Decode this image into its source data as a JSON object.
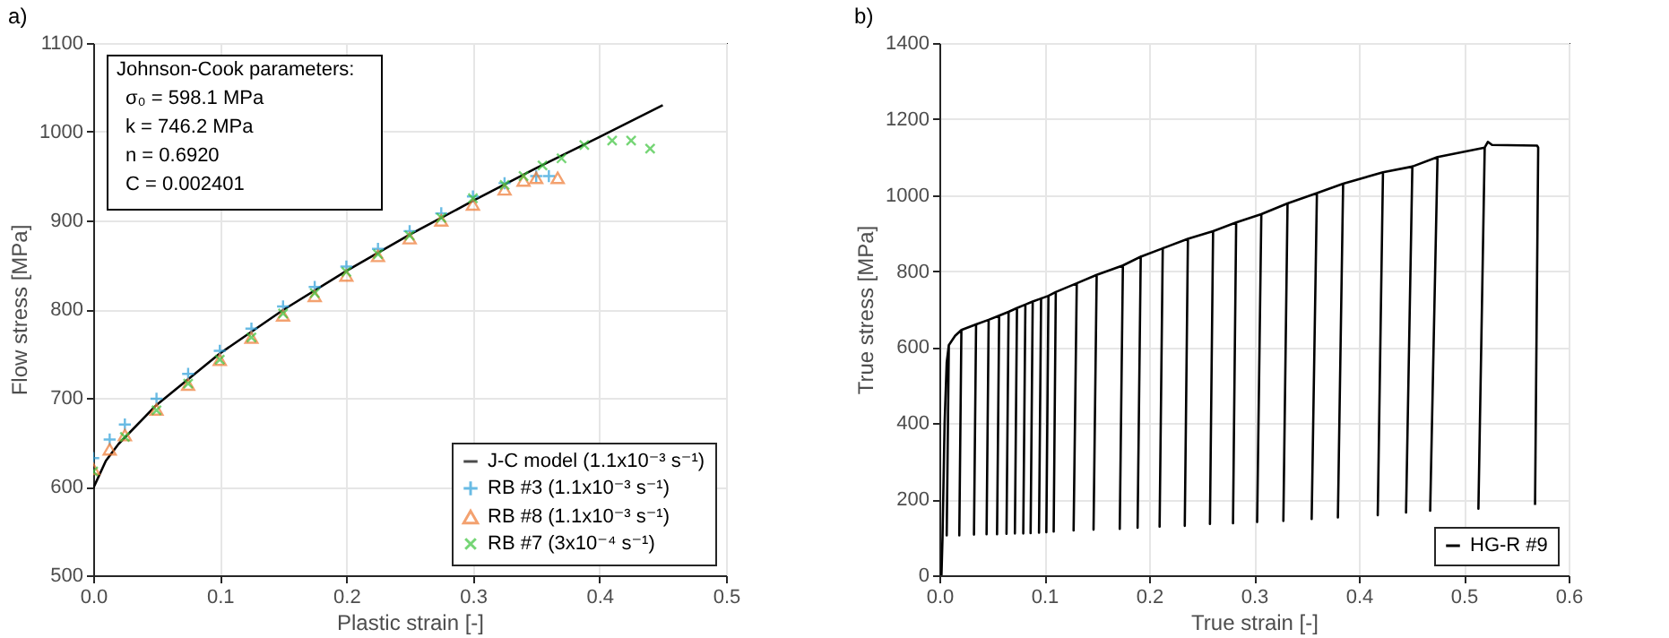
{
  "chart_data": [
    {
      "type": "line",
      "title": "a)",
      "xlabel": "Plastic strain [-]",
      "ylabel": "Flow stress [MPa]",
      "xlim": [
        0,
        0.5
      ],
      "ylim": [
        500,
        1100
      ],
      "xticks": [
        {
          "value": 0,
          "label": "0.0"
        },
        0.1,
        0.2,
        0.3,
        0.4,
        0.5
      ],
      "yticks": [
        500,
        600,
        700,
        800,
        900,
        1000,
        1100
      ],
      "grid": true,
      "legend": "bottom right",
      "annotations": [
        "Johnson-Cook parameters:",
        "σ₀ = 598.1 MPa",
        "k = 746.2 MPa",
        "n = 0.6920",
        "C = 0.002401"
      ],
      "series": [
        {
          "name": "J-C model (1.1x10⁻³ s⁻¹)",
          "color": "#000000",
          "marker": "none",
          "x": [
            0,
            0.01,
            0.02,
            0.05,
            0.1,
            0.15,
            0.2,
            0.25,
            0.3,
            0.35,
            0.4,
            0.45
          ],
          "values": [
            598,
            629,
            648,
            692,
            750,
            799,
            843,
            884,
            922,
            959,
            994,
            1030
          ]
        },
        {
          "name": "RB #3 (1.1x10⁻³ s⁻¹)",
          "type": "scatter",
          "color": "#2b9fd9",
          "marker": "plus",
          "x": [
            0,
            0.013,
            0.025,
            0.05,
            0.075,
            0.1,
            0.125,
            0.15,
            0.175,
            0.2,
            0.225,
            0.25,
            0.275,
            0.3,
            0.325,
            0.35,
            0.36
          ],
          "values": [
            632,
            653,
            670,
            699,
            727,
            753,
            778,
            803,
            825,
            848,
            868,
            888,
            908,
            927,
            942,
            950,
            950
          ]
        },
        {
          "name": "RB #8 (1.1x10⁻³ s⁻¹)",
          "type": "scatter",
          "color": "#ef7a33",
          "marker": "triangle",
          "x": [
            0,
            0.013,
            0.025,
            0.05,
            0.075,
            0.1,
            0.125,
            0.15,
            0.175,
            0.2,
            0.225,
            0.25,
            0.275,
            0.3,
            0.325,
            0.34,
            0.35,
            0.367
          ],
          "values": [
            620,
            642,
            658,
            687,
            715,
            743,
            768,
            793,
            815,
            838,
            860,
            880,
            900,
            918,
            935,
            945,
            948,
            948
          ]
        },
        {
          "name": "RB #7 (3x10⁻⁴ s⁻¹)",
          "type": "scatter",
          "color": "#3cc43c",
          "marker": "cross",
          "x": [
            0,
            0.025,
            0.05,
            0.075,
            0.1,
            0.125,
            0.15,
            0.175,
            0.2,
            0.225,
            0.25,
            0.275,
            0.3,
            0.325,
            0.34,
            0.355,
            0.37,
            0.388,
            0.41,
            0.425,
            0.44
          ],
          "values": [
            617,
            656,
            686,
            716,
            743,
            768,
            795,
            818,
            842,
            862,
            883,
            903,
            925,
            940,
            950,
            962,
            970,
            985,
            990,
            990,
            981
          ]
        }
      ]
    },
    {
      "type": "line",
      "title": "b)",
      "xlabel": "True strain [-]",
      "ylabel": "True stress [MPa]",
      "xlim": [
        0,
        0.6
      ],
      "ylim": [
        0,
        1400
      ],
      "xticks": [
        {
          "value": 0,
          "label": "0.0"
        },
        0.1,
        0.2,
        0.3,
        0.4,
        0.5,
        0.6
      ],
      "yticks": [
        0,
        200,
        400,
        600,
        800,
        1000,
        1200,
        1400
      ],
      "grid": true,
      "legend": "bottom right",
      "series": [
        {
          "name": "HG-R #9",
          "color": "#000000",
          "x": [
            0.002,
            0.003,
            0.005,
            0.007,
            0.009,
            0.007,
            0.009,
            0.015,
            0.021,
            0.019,
            0.021,
            0.035,
            0.033,
            0.035,
            0.047,
            0.045,
            0.047,
            0.057,
            0.055,
            0.057,
            0.066,
            0.064,
            0.066,
            0.074,
            0.072,
            0.074,
            0.082,
            0.08,
            0.082,
            0.089,
            0.087,
            0.089,
            0.097,
            0.095,
            0.097,
            0.104,
            0.102,
            0.104,
            0.111,
            0.109,
            0.111,
            0.131,
            0.128,
            0.131,
            0.15,
            0.147,
            0.15,
            0.175,
            0.172,
            0.175,
            0.192,
            0.189,
            0.192,
            0.213,
            0.21,
            0.213,
            0.237,
            0.234,
            0.237,
            0.261,
            0.258,
            0.261,
            0.283,
            0.28,
            0.283,
            0.307,
            0.303,
            0.307,
            0.332,
            0.328,
            0.332,
            0.36,
            0.355,
            0.36,
            0.385,
            0.38,
            0.385,
            0.423,
            0.418,
            0.423,
            0.451,
            0.445,
            0.451,
            0.475,
            0.468,
            0.475,
            0.52,
            0.514,
            0.52,
            0.523,
            0.527,
            0.57,
            0.571,
            0.568
          ],
          "values": [
            0,
            100,
            400,
            560,
            605,
            105,
            605,
            630,
            645,
            105,
            645,
            660,
            107,
            660,
            672,
            108,
            672,
            683,
            108,
            683,
            693,
            109,
            693,
            703,
            110,
            703,
            712,
            110,
            712,
            720,
            111,
            720,
            728,
            112,
            728,
            735,
            113,
            735,
            745,
            115,
            745,
            768,
            118,
            768,
            790,
            120,
            790,
            815,
            122,
            815,
            838,
            125,
            838,
            860,
            128,
            860,
            885,
            130,
            885,
            905,
            135,
            905,
            928,
            137,
            928,
            950,
            140,
            950,
            978,
            143,
            978,
            1005,
            148,
            1005,
            1030,
            152,
            1030,
            1060,
            158,
            1060,
            1075,
            165,
            1075,
            1100,
            170,
            1100,
            1125,
            175,
            1125,
            1140,
            1132,
            1130,
            1125,
            185
          ]
        }
      ]
    }
  ]
}
